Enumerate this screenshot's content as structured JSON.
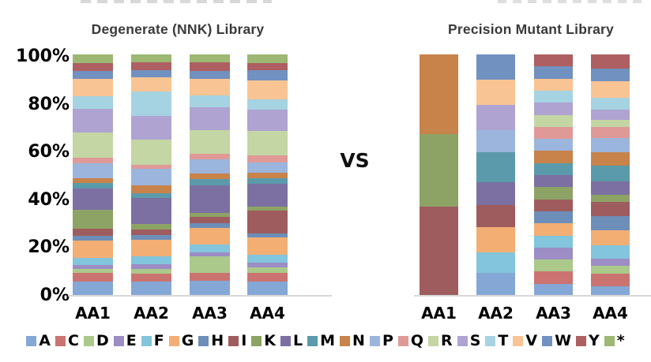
{
  "page": {
    "background": "#ffffff"
  },
  "titles": {
    "left": "Degenerate (NNK) Library",
    "right": "Precision Mutant Library",
    "vs": "VS"
  },
  "y_axis": {
    "labels": [
      "100%",
      "80%",
      "60%",
      "40%",
      "20%",
      "0%"
    ]
  },
  "x_axis": {
    "categories": [
      "AA1",
      "AA2",
      "AA3",
      "AA4"
    ]
  },
  "legend": {
    "position": "bottom",
    "items": [
      "A",
      "C",
      "D",
      "E",
      "F",
      "G",
      "H",
      "I",
      "K",
      "L",
      "M",
      "N",
      "P",
      "Q",
      "R",
      "S",
      "T",
      "V",
      "W",
      "Y",
      "*"
    ]
  },
  "colors": {
    "A": "#84A7D6",
    "C": "#CB7370",
    "D": "#ABC98A",
    "E": "#9C8DC4",
    "F": "#82C5DC",
    "G": "#F3AE74",
    "H": "#6D8EB8",
    "I": "#9F5C5E",
    "K": "#8DA365",
    "L": "#7C70A2",
    "M": "#5B9AAA",
    "N": "#C8834A",
    "P": "#9CB5DC",
    "Q": "#DF9A98",
    "R": "#C3D6A3",
    "S": "#AFA3D2",
    "T": "#A5D3E2",
    "V": "#F9C493",
    "W": "#7191C0",
    "Y": "#AE5F61",
    "*": "#9CB873",
    "axis_line": "#d9d9d9",
    "title_text": "#3a3a3a"
  },
  "chart_data": [
    {
      "type": "bar",
      "stacked": true,
      "title": "Degenerate (NNK) Library",
      "categories": [
        "AA1",
        "AA2",
        "AA3",
        "AA4"
      ],
      "xlabel": "",
      "ylabel": "",
      "ylim": [
        0,
        100
      ],
      "y_tick_labels": [
        "0%",
        "20%",
        "40%",
        "60%",
        "80%",
        "100%"
      ],
      "grid": false,
      "legend_position": "bottom",
      "units": "percent",
      "series": [
        {
          "name": "A",
          "values": [
            6.0,
            6.0,
            6.3,
            5.9
          ]
        },
        {
          "name": "C",
          "values": [
            3.5,
            3.3,
            3.3,
            3.6
          ]
        },
        {
          "name": "D",
          "values": [
            1.6,
            1.9,
            6.9,
            2.2
          ]
        },
        {
          "name": "E",
          "values": [
            1.6,
            2.0,
            1.4,
            1.9
          ]
        },
        {
          "name": "F",
          "values": [
            3.0,
            3.3,
            3.5,
            3.3
          ]
        },
        {
          "name": "G",
          "values": [
            7.3,
            6.8,
            6.8,
            7.3
          ]
        },
        {
          "name": "H",
          "values": [
            2.0,
            2.0,
            1.8,
            1.5
          ]
        },
        {
          "name": "I",
          "values": [
            2.7,
            2.2,
            2.6,
            9.7
          ]
        },
        {
          "name": "K",
          "values": [
            8.0,
            2.4,
            1.8,
            1.6
          ]
        },
        {
          "name": "L",
          "values": [
            8.8,
            10.7,
            11.4,
            9.5
          ]
        },
        {
          "name": "M",
          "values": [
            2.2,
            2.0,
            2.5,
            2.2
          ]
        },
        {
          "name": "N",
          "values": [
            2.0,
            3.3,
            2.5,
            2.2
          ]
        },
        {
          "name": "P",
          "values": [
            6.4,
            6.6,
            5.9,
            4.4
          ]
        },
        {
          "name": "Q",
          "values": [
            2.2,
            1.9,
            2.2,
            2.9
          ]
        },
        {
          "name": "R",
          "values": [
            10.3,
            10.2,
            9.9,
            10.3
          ]
        },
        {
          "name": "S",
          "values": [
            9.9,
            9.9,
            9.5,
            8.8
          ]
        },
        {
          "name": "T",
          "values": [
            5.3,
            10.3,
            4.6,
            4.0
          ]
        },
        {
          "name": "V",
          "values": [
            7.1,
            5.8,
            7.1,
            8.1
          ]
        },
        {
          "name": "W",
          "values": [
            3.3,
            3.0,
            3.3,
            4.0
          ]
        },
        {
          "name": "Y",
          "values": [
            3.3,
            3.3,
            3.6,
            3.0
          ]
        },
        {
          "name": "*",
          "values": [
            3.5,
            3.1,
            3.1,
            3.6
          ]
        }
      ]
    },
    {
      "type": "bar",
      "stacked": true,
      "title": "Precision Mutant Library",
      "categories": [
        "AA1",
        "AA2",
        "AA3",
        "AA4"
      ],
      "xlabel": "",
      "ylabel": "",
      "ylim": [
        0,
        100
      ],
      "y_tick_labels": [
        "0%",
        "20%",
        "40%",
        "60%",
        "80%",
        "100%"
      ],
      "grid": false,
      "legend_position": "bottom",
      "units": "percent",
      "series": [
        {
          "name": "A",
          "values": [
            0,
            9.5,
            5,
            4.0
          ]
        },
        {
          "name": "C",
          "values": [
            0,
            0,
            5,
            5.0
          ]
        },
        {
          "name": "D",
          "values": [
            0,
            0,
            5,
            3.5
          ]
        },
        {
          "name": "E",
          "values": [
            0,
            0,
            5,
            3.0
          ]
        },
        {
          "name": "F",
          "values": [
            0,
            8.5,
            5,
            5.5
          ]
        },
        {
          "name": "G",
          "values": [
            0,
            10.5,
            5,
            6.0
          ]
        },
        {
          "name": "H",
          "values": [
            0,
            0,
            5,
            6.0
          ]
        },
        {
          "name": "I",
          "values": [
            37.0,
            9.0,
            5,
            6.0
          ]
        },
        {
          "name": "K",
          "values": [
            30.0,
            0,
            5,
            3.0
          ]
        },
        {
          "name": "L",
          "values": [
            0,
            9.5,
            5,
            5.5
          ]
        },
        {
          "name": "M",
          "values": [
            0,
            12.5,
            5,
            6.5
          ]
        },
        {
          "name": "N",
          "values": [
            33.0,
            0,
            5,
            5.5
          ]
        },
        {
          "name": "P",
          "values": [
            0,
            9.0,
            5,
            6.0
          ]
        },
        {
          "name": "Q",
          "values": [
            0,
            0,
            5,
            4.5
          ]
        },
        {
          "name": "R",
          "values": [
            0,
            0,
            5,
            3.0
          ]
        },
        {
          "name": "S",
          "values": [
            0,
            10.5,
            5,
            4.0
          ]
        },
        {
          "name": "T",
          "values": [
            0,
            0,
            5,
            5.0
          ]
        },
        {
          "name": "V",
          "values": [
            0,
            10.5,
            5,
            7.0
          ]
        },
        {
          "name": "W",
          "values": [
            0,
            10.5,
            5,
            5.0
          ]
        },
        {
          "name": "Y",
          "values": [
            0,
            0,
            5,
            6.0
          ]
        },
        {
          "name": "*",
          "values": [
            0,
            0,
            0,
            0
          ]
        }
      ]
    }
  ]
}
